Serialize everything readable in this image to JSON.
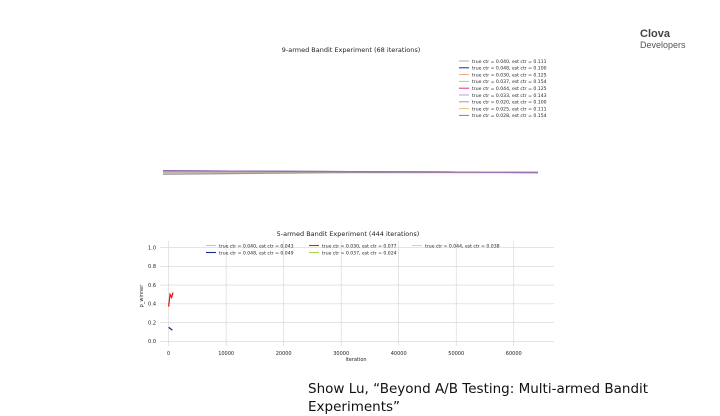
{
  "brand": {
    "line1": "Clova",
    "line2": "Developers"
  },
  "caption": "Show Lu, “Beyond A/B Testing: Multi-armed Bandit Experiments”",
  "chart_data": [
    {
      "type": "line",
      "title": "9-armed Bandit Experiment (68 iterations)",
      "legend_position": "top-right",
      "grid": false,
      "series": [
        {
          "name": "true ctr = 0.040, est ctr = 0.111",
          "color": "#aab2c8",
          "values": [
            0.11,
            0.11,
            0.11
          ]
        },
        {
          "name": "true ctr = 0.048, est ctr = 0.100",
          "color": "#1f2a8c",
          "values": [
            0.112,
            0.111,
            0.11
          ]
        },
        {
          "name": "true ctr = 0.030, est ctr = 0.125",
          "color": "#f4a582",
          "values": [
            0.111,
            0.111,
            0.11
          ]
        },
        {
          "name": "true ctr = 0.037, est ctr = 0.154",
          "color": "#a6d854",
          "values": [
            0.111,
            0.111,
            0.11
          ]
        },
        {
          "name": "true ctr = 0.044, est ctr = 0.125",
          "color": "#e7298a",
          "values": [
            0.111,
            0.111,
            0.11
          ]
        },
        {
          "name": "true ctr = 0.033, est ctr = 0.143",
          "color": "#b3a7d6",
          "values": [
            0.111,
            0.111,
            0.11
          ]
        },
        {
          "name": "true ctr = 0.020, est ctr = 0.100",
          "color": "#999999",
          "values": [
            0.108,
            0.11,
            0.11
          ]
        },
        {
          "name": "true ctr = 0.025, est ctr = 0.111",
          "color": "#e6c27a",
          "values": [
            0.111,
            0.111,
            0.11
          ]
        },
        {
          "name": "true ctr = 0.028, est ctr = 0.154",
          "color": "#9c6fb5",
          "values": [
            0.112,
            0.111,
            0.11
          ]
        }
      ]
    },
    {
      "type": "line",
      "title": "5-armed Bandit Experiment (444 iterations)",
      "xlabel": "iteration",
      "ylabel": "p_winner",
      "xlim": [
        -1500,
        67000
      ],
      "ylim": [
        -0.05,
        1.07
      ],
      "xticks": [
        0,
        10000,
        20000,
        30000,
        40000,
        50000,
        60000
      ],
      "xtick_labels": [
        "0",
        "10000",
        "20000",
        "30000",
        "40000",
        "50000",
        "60000"
      ],
      "yticks": [
        0.0,
        0.2,
        0.4,
        0.6,
        0.8,
        1.0
      ],
      "ytick_labels": [
        "0.0",
        "0.2",
        "0.4",
        "0.6",
        "0.8",
        "1.0"
      ],
      "grid": true,
      "legend_position": "top",
      "series": [
        {
          "name": "true ctr = 0.040, est ctr = 0.043",
          "color": "#c7c7c7",
          "x": [],
          "y": []
        },
        {
          "name": "true ctr = 0.048, est ctr = 0.049",
          "color": "#1f2a8c",
          "x": [
            0,
            300,
            444
          ],
          "y": [
            0.15,
            0.13,
            0.12
          ]
        },
        {
          "name": "true ctr = 0.030, est ctr = 0.077",
          "color": "#e41a1c",
          "x": [
            0,
            150,
            300,
            444
          ],
          "y": [
            0.37,
            0.5,
            0.47,
            0.52
          ]
        },
        {
          "name": "true ctr = 0.037, est ctr = 0.024",
          "color": "#a6d854",
          "x": [],
          "y": []
        },
        {
          "name": "true ctr = 0.044, est ctr = 0.038",
          "color": "#d0d0d0",
          "x": [],
          "y": []
        }
      ]
    }
  ]
}
